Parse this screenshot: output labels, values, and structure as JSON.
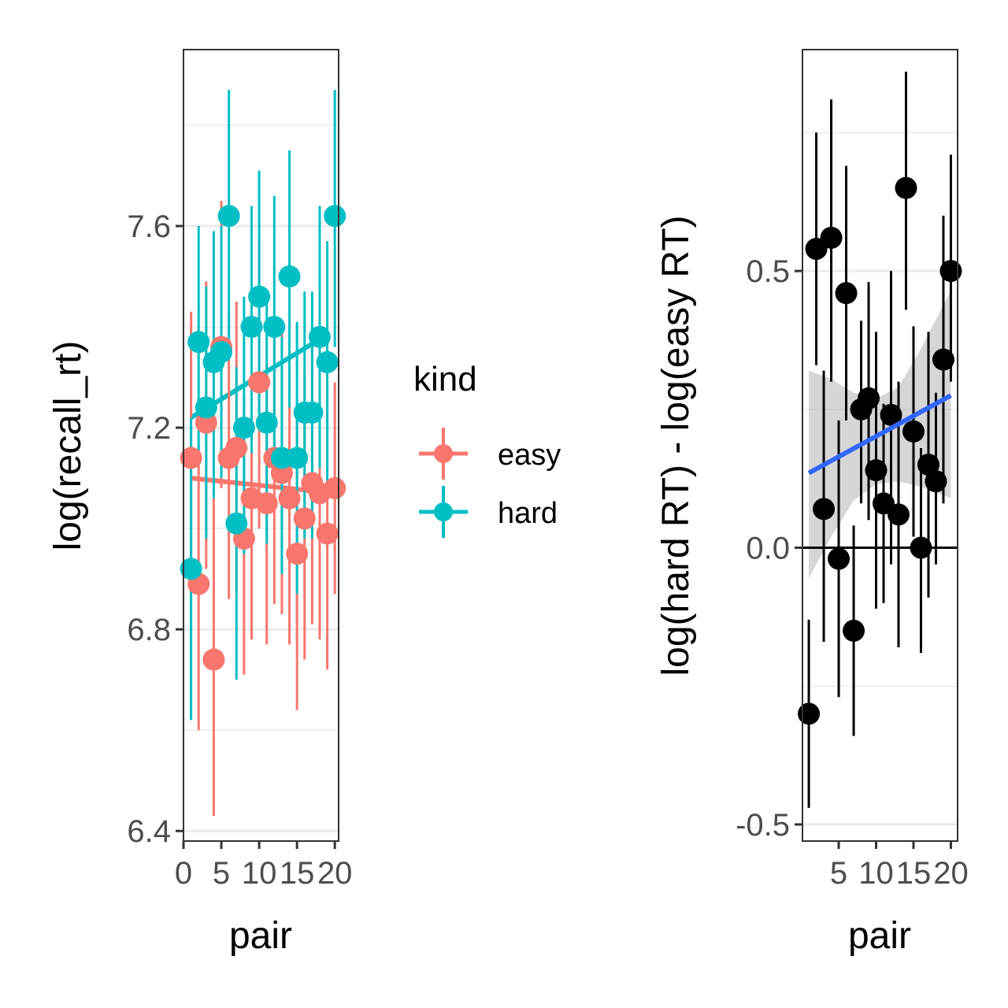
{
  "chart_data": [
    {
      "type": "scatter",
      "xlabel": "pair",
      "ylabel": "log(recall_rt)",
      "xlim": [
        0,
        20.5
      ],
      "ylim": [
        6.38,
        7.95
      ],
      "x_ticks": [
        0,
        5,
        10,
        15,
        20
      ],
      "x_tick_labels": [
        "0",
        "5",
        "10",
        "15",
        "20"
      ],
      "y_ticks": [
        6.4,
        6.8,
        7.2,
        7.6
      ],
      "y_tick_labels": [
        "6.4",
        "6.8",
        "7.2",
        "7.6"
      ],
      "grid": true,
      "legend": {
        "title": "kind",
        "placement": "right",
        "entries": [
          {
            "label": "easy",
            "color": "#F8766D"
          },
          {
            "label": "hard",
            "color": "#00BFC4"
          }
        ]
      },
      "series": [
        {
          "name": "easy",
          "color": "#F8766D",
          "points": [
            {
              "x": 1,
              "y": 7.14,
              "lo": 6.86,
              "hi": 7.43
            },
            {
              "x": 2,
              "y": 6.89,
              "lo": 6.6,
              "hi": 7.17
            },
            {
              "x": 3,
              "y": 7.21,
              "lo": 6.92,
              "hi": 7.49
            },
            {
              "x": 4,
              "y": 6.74,
              "lo": 6.43,
              "hi": 7.06
            },
            {
              "x": 5,
              "y": 7.36,
              "lo": 7.08,
              "hi": 7.65
            },
            {
              "x": 6,
              "y": 7.14,
              "lo": 6.86,
              "hi": 7.43
            },
            {
              "x": 7,
              "y": 7.16,
              "lo": 6.87,
              "hi": 7.45
            },
            {
              "x": 8,
              "y": 6.98,
              "lo": 6.71,
              "hi": 7.26
            },
            {
              "x": 9,
              "y": 7.06,
              "lo": 6.78,
              "hi": 7.35
            },
            {
              "x": 10,
              "y": 7.29,
              "lo": 7.0,
              "hi": 7.58
            },
            {
              "x": 11,
              "y": 7.05,
              "lo": 6.77,
              "hi": 7.33
            },
            {
              "x": 12,
              "y": 7.14,
              "lo": 6.85,
              "hi": 7.42
            },
            {
              "x": 13,
              "y": 7.11,
              "lo": 6.83,
              "hi": 7.4
            },
            {
              "x": 14,
              "y": 7.06,
              "lo": 6.77,
              "hi": 7.35
            },
            {
              "x": 15,
              "y": 6.95,
              "lo": 6.64,
              "hi": 7.26
            },
            {
              "x": 16,
              "y": 7.02,
              "lo": 6.74,
              "hi": 7.31
            },
            {
              "x": 17,
              "y": 7.09,
              "lo": 6.81,
              "hi": 7.38
            },
            {
              "x": 18,
              "y": 7.07,
              "lo": 6.78,
              "hi": 7.36
            },
            {
              "x": 19,
              "y": 6.99,
              "lo": 6.72,
              "hi": 7.27
            },
            {
              "x": 20,
              "y": 7.08,
              "lo": 6.87,
              "hi": 7.29
            }
          ],
          "trend": {
            "x": [
              1,
              20
            ],
            "y": [
              7.1,
              7.07
            ]
          }
        },
        {
          "name": "hard",
          "color": "#00BFC4",
          "points": [
            {
              "x": 1,
              "y": 6.92,
              "lo": 6.62,
              "hi": 7.22
            },
            {
              "x": 2,
              "y": 7.37,
              "lo": 7.13,
              "hi": 7.6
            },
            {
              "x": 3,
              "y": 7.24,
              "lo": 6.98,
              "hi": 7.48
            },
            {
              "x": 4,
              "y": 7.33,
              "lo": 7.06,
              "hi": 7.59
            },
            {
              "x": 5,
              "y": 7.35,
              "lo": 7.1,
              "hi": 7.6
            },
            {
              "x": 6,
              "y": 7.62,
              "lo": 7.36,
              "hi": 7.87
            },
            {
              "x": 7,
              "y": 7.01,
              "lo": 6.7,
              "hi": 7.32
            },
            {
              "x": 8,
              "y": 7.2,
              "lo": 6.95,
              "hi": 7.46
            },
            {
              "x": 9,
              "y": 7.4,
              "lo": 7.15,
              "hi": 7.64
            },
            {
              "x": 10,
              "y": 7.46,
              "lo": 7.2,
              "hi": 7.71
            },
            {
              "x": 11,
              "y": 7.21,
              "lo": 6.97,
              "hi": 7.46
            },
            {
              "x": 12,
              "y": 7.4,
              "lo": 7.15,
              "hi": 7.66
            },
            {
              "x": 13,
              "y": 7.14,
              "lo": 6.91,
              "hi": 7.38
            },
            {
              "x": 14,
              "y": 7.5,
              "lo": 7.24,
              "hi": 7.75
            },
            {
              "x": 15,
              "y": 7.14,
              "lo": 6.87,
              "hi": 7.41
            },
            {
              "x": 16,
              "y": 7.23,
              "lo": 6.98,
              "hi": 7.47
            },
            {
              "x": 17,
              "y": 7.23,
              "lo": 6.98,
              "hi": 7.47
            },
            {
              "x": 18,
              "y": 7.38,
              "lo": 7.12,
              "hi": 7.64
            },
            {
              "x": 19,
              "y": 7.33,
              "lo": 7.08,
              "hi": 7.57
            },
            {
              "x": 20,
              "y": 7.62,
              "lo": 7.36,
              "hi": 7.87
            }
          ],
          "trend": {
            "x": [
              1,
              18.5
            ],
            "y": [
              7.22,
              7.38
            ]
          }
        }
      ]
    },
    {
      "type": "scatter",
      "xlabel": "pair",
      "ylabel": "log(hard RT) - log(easy RT)",
      "xlim": [
        0.15,
        20.9
      ],
      "ylim": [
        -0.53,
        0.9
      ],
      "x_ticks": [
        5,
        10,
        15,
        20
      ],
      "x_tick_labels": [
        "5",
        "10",
        "15",
        "20"
      ],
      "y_ticks": [
        -0.5,
        0.0,
        0.5
      ],
      "y_tick_labels": [
        "-0.5",
        "0.0",
        "0.5"
      ],
      "grid": true,
      "reference_line_y": 0,
      "points": [
        {
          "x": 1,
          "y": -0.3,
          "lo": -0.47,
          "hi": -0.13
        },
        {
          "x": 2,
          "y": 0.54,
          "lo": 0.33,
          "hi": 0.75
        },
        {
          "x": 3,
          "y": 0.07,
          "lo": -0.17,
          "hi": 0.32
        },
        {
          "x": 4,
          "y": 0.56,
          "lo": 0.3,
          "hi": 0.81
        },
        {
          "x": 5,
          "y": -0.02,
          "lo": -0.27,
          "hi": 0.23
        },
        {
          "x": 6,
          "y": 0.46,
          "lo": 0.23,
          "hi": 0.69
        },
        {
          "x": 7,
          "y": -0.15,
          "lo": -0.34,
          "hi": 0.04
        },
        {
          "x": 8,
          "y": 0.25,
          "lo": 0.08,
          "hi": 0.41
        },
        {
          "x": 9,
          "y": 0.27,
          "lo": 0.05,
          "hi": 0.48
        },
        {
          "x": 10,
          "y": 0.14,
          "lo": -0.11,
          "hi": 0.39
        },
        {
          "x": 11,
          "y": 0.08,
          "lo": -0.1,
          "hi": 0.26
        },
        {
          "x": 12,
          "y": 0.24,
          "lo": -0.03,
          "hi": 0.5
        },
        {
          "x": 13,
          "y": 0.06,
          "lo": -0.18,
          "hi": 0.3
        },
        {
          "x": 14,
          "y": 0.65,
          "lo": 0.43,
          "hi": 0.86
        },
        {
          "x": 15,
          "y": 0.21,
          "lo": 0.02,
          "hi": 0.4
        },
        {
          "x": 16,
          "y": 0.0,
          "lo": -0.19,
          "hi": 0.18
        },
        {
          "x": 17,
          "y": 0.15,
          "lo": -0.09,
          "hi": 0.39
        },
        {
          "x": 18,
          "y": 0.12,
          "lo": -0.03,
          "hi": 0.28
        },
        {
          "x": 19,
          "y": 0.34,
          "lo": 0.08,
          "hi": 0.6
        },
        {
          "x": 20,
          "y": 0.5,
          "lo": 0.3,
          "hi": 0.71
        }
      ],
      "trend": {
        "x": [
          1,
          20
        ],
        "y": [
          0.135,
          0.275
        ],
        "color": "#3366FF"
      },
      "confidence_band": {
        "x": [
          1,
          4,
          7,
          10,
          13,
          16,
          20
        ],
        "lower": [
          -0.055,
          0.02,
          0.085,
          0.115,
          0.12,
          0.11,
          0.09
        ],
        "upper": [
          0.32,
          0.305,
          0.28,
          0.27,
          0.29,
          0.36,
          0.465
        ],
        "color": "#999999"
      }
    }
  ]
}
